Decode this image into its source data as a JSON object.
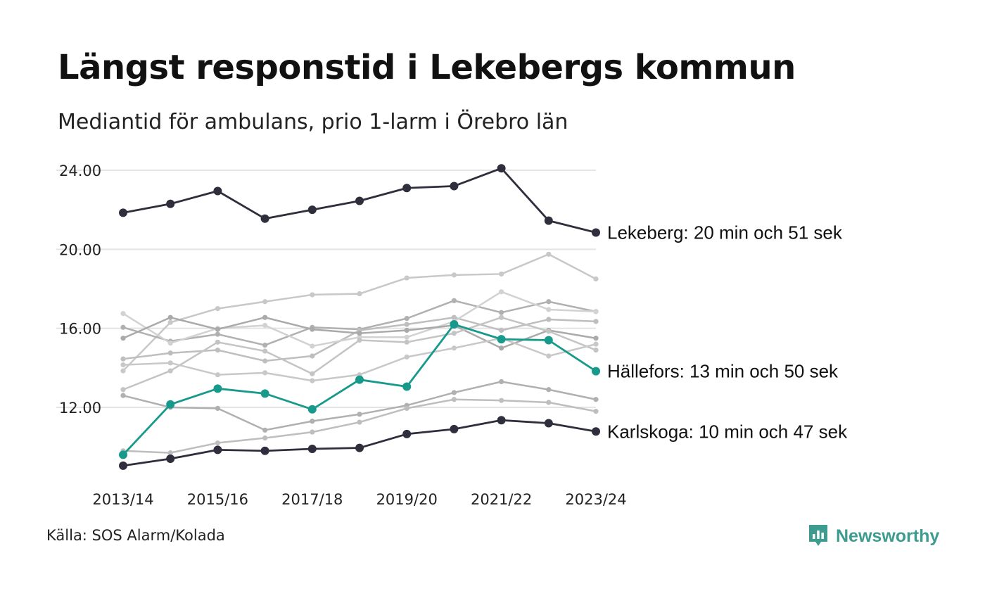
{
  "title": "Längst responstid i Lekebergs kommun",
  "subtitle": "Mediantid för ambulans, prio 1-larm i Örebro län",
  "source": "Källa: SOS Alarm/Kolada",
  "brand": "Newsworthy",
  "colors": {
    "highlight_dark": "#2e2e3c",
    "highlight_teal": "#179a8b",
    "background_series": [
      "#c8c8c8",
      "#b0b0b0",
      "#bebebe",
      "#d2d2d2",
      "#aaaaaa",
      "#c4c4c4"
    ],
    "gridline": "#e4e4e4",
    "brand": "#3d9b8f"
  },
  "chart_data": {
    "type": "line",
    "x": [
      "2013/14",
      "2014/15",
      "2015/16",
      "2016/17",
      "2017/18",
      "2018/19",
      "2019/20",
      "2020/21",
      "2021/22",
      "2022/23",
      "2023/24"
    ],
    "x_tick_labels": [
      "2013/14",
      "2015/16",
      "2017/18",
      "2019/20",
      "2021/22",
      "2023/24"
    ],
    "y_ticks": [
      "24.00",
      "20.00",
      "16.00",
      "12.00"
    ],
    "ylim": [
      8.6,
      24.9
    ],
    "grid": "horizontal",
    "highlighted": [
      {
        "name": "Lekeberg",
        "label": "Lekeberg: 20 min och 51 sek",
        "color": "#2e2e3c",
        "values": [
          21.85,
          22.3,
          22.95,
          21.55,
          22.0,
          22.45,
          23.1,
          23.2,
          24.1,
          21.45,
          20.85
        ]
      },
      {
        "name": "Hällefors",
        "label": "Hällefors: 13 min och 50 sek",
        "color": "#179a8b",
        "values": [
          9.6,
          12.15,
          12.95,
          12.7,
          11.9,
          13.4,
          13.05,
          16.2,
          15.45,
          15.4,
          13.83
        ]
      },
      {
        "name": "Karlskoga",
        "label": "Karlskoga: 10 min och 47 sek",
        "color": "#2e2e3c",
        "values": [
          9.05,
          9.4,
          9.85,
          9.8,
          9.9,
          9.95,
          10.65,
          10.9,
          11.35,
          11.2,
          10.78
        ]
      }
    ],
    "background": [
      [
        13.85,
        16.3,
        17.0,
        17.35,
        17.7,
        17.75,
        18.55,
        18.7,
        18.75,
        19.75,
        18.5
      ],
      [
        16.05,
        15.35,
        15.7,
        15.15,
        16.05,
        15.95,
        16.5,
        17.4,
        16.8,
        17.35,
        16.85
      ],
      [
        14.45,
        14.75,
        14.9,
        14.35,
        14.6,
        15.9,
        16.2,
        16.55,
        15.9,
        16.45,
        16.35
      ],
      [
        16.75,
        15.25,
        16.0,
        16.15,
        15.1,
        15.55,
        15.55,
        16.35,
        17.85,
        16.95,
        16.85
      ],
      [
        15.5,
        16.55,
        15.95,
        16.55,
        15.95,
        15.75,
        15.9,
        16.15,
        15.0,
        15.9,
        15.5
      ],
      [
        12.9,
        13.85,
        15.3,
        14.85,
        13.7,
        15.4,
        15.3,
        15.75,
        16.55,
        15.85,
        14.9
      ],
      [
        14.15,
        14.25,
        13.65,
        13.75,
        13.35,
        13.65,
        14.55,
        15.0,
        15.5,
        14.6,
        15.2
      ],
      [
        12.6,
        12.0,
        11.95,
        10.85,
        11.3,
        11.65,
        12.1,
        12.75,
        13.3,
        12.9,
        12.4
      ],
      [
        9.8,
        9.7,
        10.2,
        10.45,
        10.75,
        11.25,
        11.95,
        12.4,
        12.35,
        12.25,
        11.8
      ]
    ]
  }
}
